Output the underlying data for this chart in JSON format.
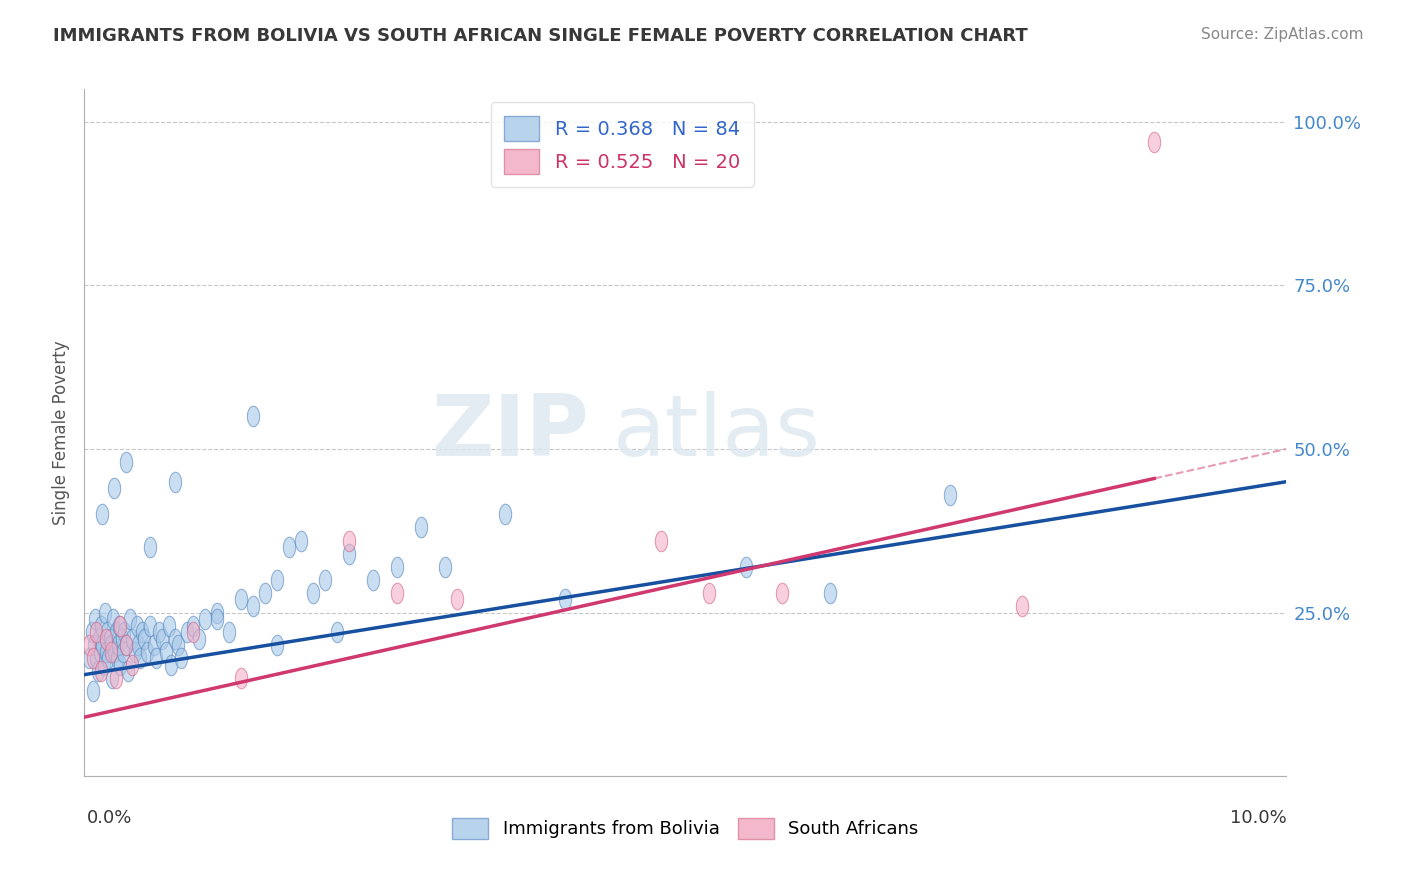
{
  "title": "IMMIGRANTS FROM BOLIVIA VS SOUTH AFRICAN SINGLE FEMALE POVERTY CORRELATION CHART",
  "source": "Source: ZipAtlas.com",
  "ylabel": "Single Female Poverty",
  "blue_color": "#a8c8e8",
  "pink_color": "#f4b0c8",
  "blue_edge_color": "#5888c0",
  "pink_edge_color": "#d06888",
  "blue_line_color": "#1850a0",
  "pink_line_color": "#d03870",
  "background_color": "#ffffff",
  "grid_color": "#c8c8c8",
  "title_color": "#383838",
  "right_axis_color": "#4488cc",
  "bolivia_r": 0.368,
  "bolivia_n": 84,
  "sa_r": 0.525,
  "sa_n": 20,
  "bolivia_x": [
    0.04,
    0.06,
    0.08,
    0.09,
    0.1,
    0.11,
    0.12,
    0.13,
    0.14,
    0.15,
    0.16,
    0.17,
    0.18,
    0.19,
    0.2,
    0.21,
    0.22,
    0.23,
    0.24,
    0.25,
    0.26,
    0.27,
    0.28,
    0.29,
    0.3,
    0.31,
    0.32,
    0.33,
    0.35,
    0.36,
    0.38,
    0.4,
    0.42,
    0.44,
    0.45,
    0.46,
    0.48,
    0.5,
    0.52,
    0.55,
    0.58,
    0.6,
    0.62,
    0.65,
    0.68,
    0.7,
    0.72,
    0.75,
    0.78,
    0.8,
    0.85,
    0.9,
    0.95,
    1.0,
    1.1,
    1.2,
    1.3,
    1.4,
    1.5,
    1.6,
    1.7,
    1.8,
    1.9,
    2.0,
    2.2,
    2.4,
    2.6,
    2.8,
    3.0,
    3.5,
    0.07,
    0.15,
    0.25,
    0.35,
    0.55,
    0.75,
    1.1,
    1.4,
    4.0,
    5.5,
    6.2,
    7.2,
    1.6,
    2.1
  ],
  "bolivia_y": [
    18.0,
    22.0,
    20.0,
    24.0,
    18.0,
    16.0,
    21.0,
    19.0,
    23.0,
    20.0,
    17.0,
    25.0,
    19.0,
    22.0,
    18.0,
    21.0,
    20.0,
    15.0,
    24.0,
    19.0,
    22.0,
    18.0,
    20.0,
    23.0,
    17.0,
    21.0,
    19.0,
    22.0,
    20.0,
    16.0,
    24.0,
    21.0,
    19.0,
    23.0,
    20.0,
    18.0,
    22.0,
    21.0,
    19.0,
    23.0,
    20.0,
    18.0,
    22.0,
    21.0,
    19.0,
    23.0,
    17.0,
    21.0,
    20.0,
    18.0,
    22.0,
    23.0,
    21.0,
    24.0,
    25.0,
    22.0,
    27.0,
    55.0,
    28.0,
    30.0,
    35.0,
    36.0,
    28.0,
    30.0,
    34.0,
    30.0,
    32.0,
    38.0,
    32.0,
    40.0,
    13.0,
    40.0,
    44.0,
    48.0,
    35.0,
    45.0,
    24.0,
    26.0,
    27.0,
    32.0,
    28.0,
    43.0,
    20.0,
    22.0
  ],
  "sa_x": [
    0.04,
    0.07,
    0.1,
    0.14,
    0.18,
    0.22,
    0.26,
    0.3,
    0.35,
    0.4,
    0.9,
    1.3,
    2.2,
    2.6,
    3.1,
    4.8,
    5.2,
    5.8,
    7.8,
    8.9
  ],
  "sa_y": [
    20.0,
    18.0,
    22.0,
    16.0,
    21.0,
    19.0,
    15.0,
    23.0,
    20.0,
    17.0,
    22.0,
    15.0,
    36.0,
    28.0,
    27.0,
    36.0,
    28.0,
    28.0,
    26.0,
    97.0
  ],
  "xmin": 0.0,
  "xmax": 10.0,
  "ymin": 0.0,
  "ymax": 105.0,
  "ytick_vals": [
    25,
    50,
    75,
    100
  ],
  "ytick_labels": [
    "25.0%",
    "50.0%",
    "75.0%",
    "100.0%"
  ],
  "blue_line_x0": 0.0,
  "blue_line_y0": 15.5,
  "blue_line_x1": 10.0,
  "blue_line_y1": 45.0,
  "pink_line_x0": 0.0,
  "pink_line_y0": 9.0,
  "pink_line_x1": 10.0,
  "pink_line_y1": 50.0
}
